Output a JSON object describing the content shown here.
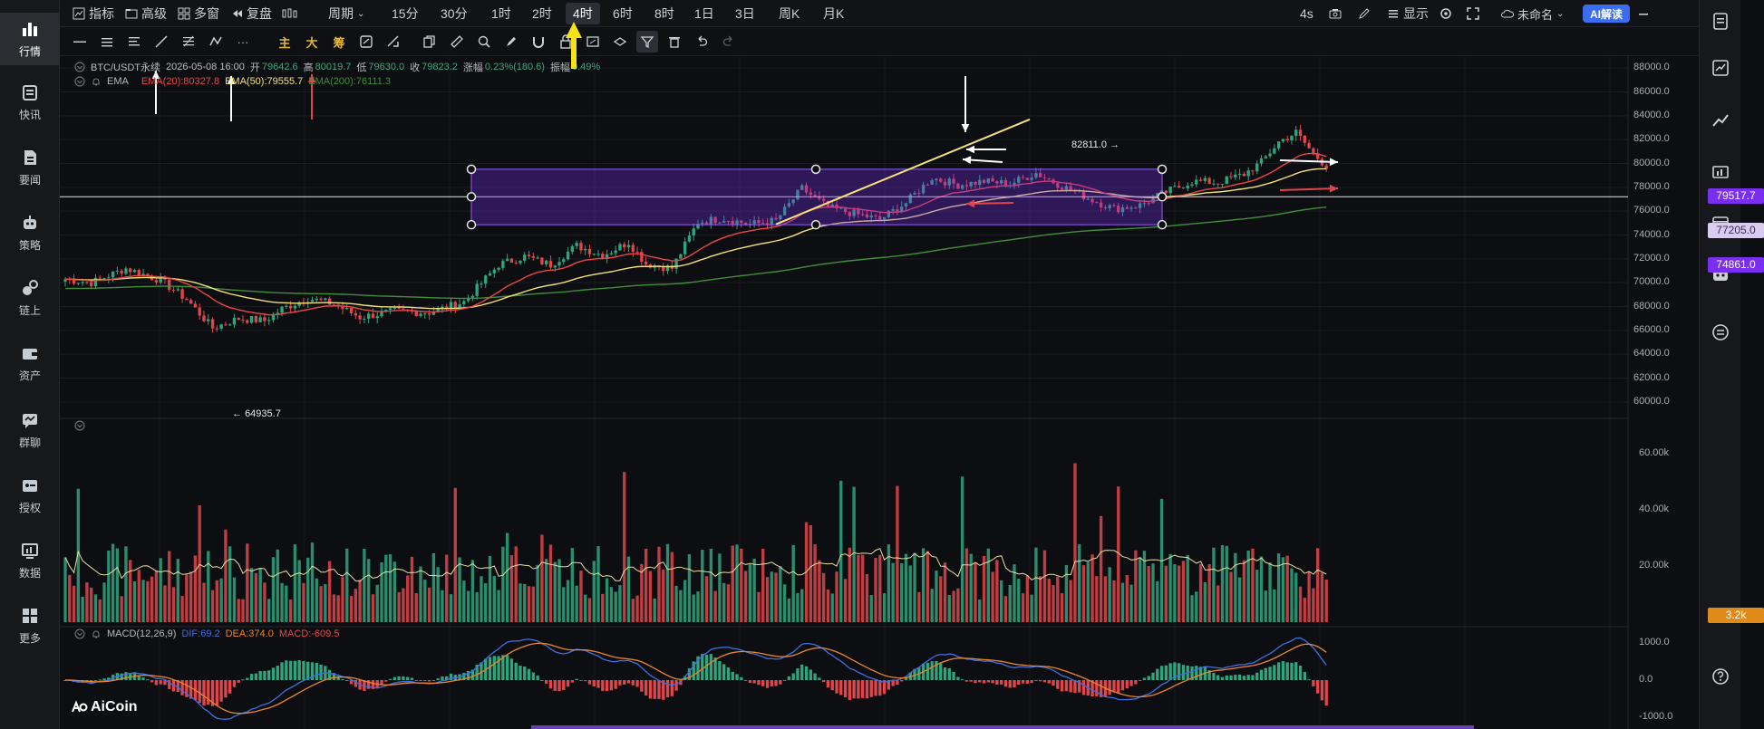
{
  "sidebar": {
    "items": [
      {
        "label": "行情",
        "icon": "bar-chart-icon",
        "active": true
      },
      {
        "label": "快讯",
        "icon": "news-flash-icon"
      },
      {
        "label": "要闻",
        "icon": "document-icon"
      },
      {
        "label": "策略",
        "icon": "robot-icon"
      },
      {
        "label": "链上",
        "icon": "chain-icon"
      },
      {
        "label": "资产",
        "icon": "wallet-icon"
      },
      {
        "label": "群聊",
        "icon": "chat-icon"
      },
      {
        "label": "授权",
        "icon": "key-icon"
      },
      {
        "label": "数据",
        "icon": "monitor-icon"
      },
      {
        "label": "更多",
        "icon": "grid-icon"
      }
    ]
  },
  "topbar": {
    "indicator": "指标",
    "advanced": "高级",
    "multi_window": "多窗",
    "replay": "复盘",
    "period": "周期",
    "timeframes": [
      "15分",
      "30分",
      "1时",
      "2时",
      "4时",
      "6时",
      "8时",
      "1日",
      "3日",
      "周K",
      "月K"
    ],
    "active_timeframe": "4时",
    "refresh": "4s",
    "display": "显示",
    "layout_name": "未命名",
    "ai_button": "AI解读"
  },
  "symbol_info": {
    "symbol": "BTC/USDT永续",
    "datetime": "2026-05-08 16:00",
    "open_label": "开",
    "open": "79642.6",
    "high_label": "高",
    "high": "80019.7",
    "low_label": "低",
    "low": "79630.0",
    "close_label": "收",
    "close": "79823.2",
    "change_label": "涨幅",
    "change": "0.23%(180.6)",
    "amplitude_label": "振幅",
    "amplitude": "0.49%"
  },
  "ema_info": {
    "name": "EMA",
    "ema20": "EMA(20):80327.8",
    "ema50": "EMA(50):79555.7",
    "ema200": "EMA(200):76111.3",
    "colors": {
      "ema20": "#e8474a",
      "ema50": "#f4e27a",
      "ema200": "#3f8f3a"
    }
  },
  "macd_info": {
    "name": "MACD(12,26,9)",
    "dif": "DIF:69.2",
    "dea": "DEA:374.0",
    "macd": "MACD:-609.5"
  },
  "price_axis": [
    "88000.0",
    "86000.0",
    "84000.0",
    "82000.0",
    "80000.0",
    "78000.0",
    "76000.0",
    "74000.0",
    "72000.0",
    "70000.0",
    "68000.0",
    "66000.0",
    "64000.0",
    "62000.0",
    "60000.0"
  ],
  "volume_axis": [
    "60.00k",
    "40.00k",
    "20.00k"
  ],
  "macd_axis": [
    "1000.0",
    "0.0",
    "-1000.0"
  ],
  "price_tags": {
    "upper": "79517.7",
    "mid": "77205.0",
    "lower": "74861.0",
    "volume": "3.2k"
  },
  "annotations": {
    "high_label": "82811.0",
    "low_label": "64935.7"
  },
  "logo": "AiCoin",
  "chart_data": {
    "type": "candlestick",
    "symbol": "BTC/USDT永续",
    "timeframe": "4时",
    "price_range": [
      59000,
      89000
    ],
    "annotations": {
      "range_top": 79517.7,
      "range_mid": 77205.0,
      "range_bottom": 74861.0,
      "swing_high": 82811.0,
      "swing_low": 64935.7
    },
    "seed_path": [
      [
        0,
        70300
      ],
      [
        6,
        70000
      ],
      [
        14,
        71200
      ],
      [
        22,
        70200
      ],
      [
        28,
        68600
      ],
      [
        34,
        66200
      ],
      [
        40,
        67000
      ],
      [
        46,
        66800
      ],
      [
        50,
        67800
      ],
      [
        56,
        68700
      ],
      [
        62,
        68200
      ],
      [
        68,
        67100
      ],
      [
        76,
        67600
      ],
      [
        84,
        67500
      ],
      [
        92,
        68400
      ],
      [
        100,
        71500
      ],
      [
        106,
        72200
      ],
      [
        112,
        71500
      ],
      [
        118,
        73100
      ],
      [
        124,
        72300
      ],
      [
        130,
        73400
      ],
      [
        134,
        71600
      ],
      [
        140,
        71200
      ],
      [
        146,
        75100
      ],
      [
        152,
        75400
      ],
      [
        158,
        74900
      ],
      [
        164,
        75200
      ],
      [
        170,
        77900
      ],
      [
        176,
        76300
      ],
      [
        182,
        75800
      ],
      [
        188,
        75300
      ],
      [
        194,
        76700
      ],
      [
        200,
        78800
      ],
      [
        206,
        78200
      ],
      [
        212,
        78500
      ],
      [
        218,
        78300
      ],
      [
        224,
        79200
      ],
      [
        230,
        78100
      ],
      [
        236,
        77100
      ],
      [
        242,
        76200
      ],
      [
        248,
        76500
      ],
      [
        254,
        77600
      ],
      [
        260,
        78500
      ],
      [
        266,
        78400
      ],
      [
        272,
        79100
      ],
      [
        276,
        80100
      ],
      [
        280,
        81800
      ],
      [
        284,
        82600
      ],
      [
        288,
        80800
      ],
      [
        291,
        79800
      ]
    ],
    "volume_max": 70000,
    "macd_range": [
      -1200,
      1200
    ]
  }
}
